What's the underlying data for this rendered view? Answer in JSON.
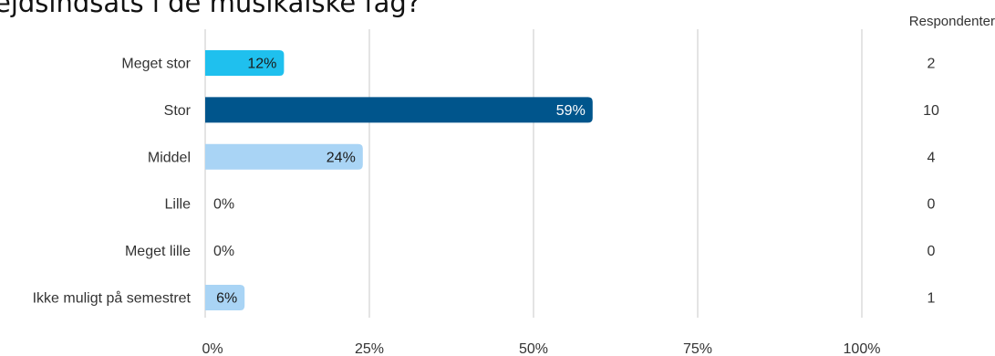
{
  "title": "ejdsindsats i de musikalske fag?",
  "chart_data": {
    "type": "bar",
    "orientation": "horizontal",
    "categories": [
      "Meget stor",
      "Stor",
      "Middel",
      "Lille",
      "Meget lille",
      "Ikke muligt på semestret"
    ],
    "values": [
      12,
      59,
      24,
      0,
      0,
      6
    ],
    "value_labels": [
      "12%",
      "59%",
      "24%",
      "0%",
      "0%",
      "6%"
    ],
    "respondents_header": "Respondenter",
    "respondents": [
      "2",
      "10",
      "4",
      "0",
      "0",
      "1"
    ],
    "bar_colors": [
      "#1fc0ee",
      "#00558c",
      "#a9d4f5",
      "#a9d4f5",
      "#a9d4f5",
      "#a9d4f5"
    ],
    "label_colors": [
      "#1a1a1a",
      "#ffffff",
      "#1a1a1a",
      "#333333",
      "#333333",
      "#1a1a1a"
    ],
    "x_ticks": [
      0,
      25,
      50,
      75,
      100
    ],
    "x_tick_labels": [
      "0%",
      "25%",
      "50%",
      "75%",
      "100%"
    ],
    "xlim": [
      0,
      100
    ],
    "grid": true,
    "gridline_color": "#c8c8c8"
  }
}
